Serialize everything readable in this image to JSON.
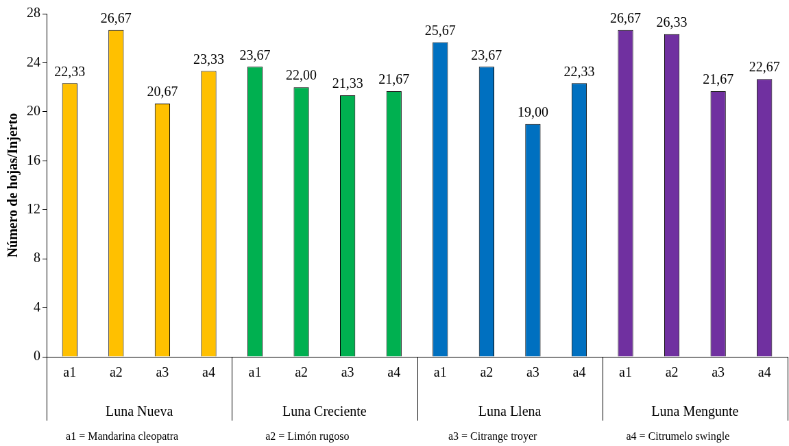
{
  "chart_data": {
    "type": "bar",
    "categories": [
      "a1",
      "a2",
      "a3",
      "a4",
      "a1",
      "a2",
      "a3",
      "a4",
      "a1",
      "a2",
      "a3",
      "a4",
      "a1",
      "a2",
      "a3",
      "a4"
    ],
    "values": [
      22.33,
      26.67,
      20.67,
      23.33,
      23.67,
      22.0,
      21.33,
      21.67,
      25.67,
      23.67,
      19.0,
      22.33,
      26.67,
      26.33,
      21.67,
      22.67
    ],
    "colors": [
      "#ffc000",
      "#ffc000",
      "#ffc000",
      "#ffc000",
      "#00b050",
      "#00b050",
      "#00b050",
      "#00b050",
      "#0070c0",
      "#0070c0",
      "#0070c0",
      "#0070c0",
      "#7030a0",
      "#7030a0",
      "#7030a0",
      "#7030a0"
    ],
    "value_labels": [
      "22,33",
      "26,67",
      "20,67",
      "23,33",
      "23,67",
      "22,00",
      "21,33",
      "21,67",
      "25,67",
      "23,67",
      "19,00",
      "22,33",
      "26,67",
      "26,33",
      "21,67",
      "22,67"
    ],
    "ylabel": "Número de hojas/Injerto",
    "ylim": [
      0,
      28
    ],
    "yticks": [
      0,
      4,
      8,
      12,
      16,
      20,
      24,
      28
    ],
    "grid": false,
    "legend": false,
    "annotations": [
      "Luna Nueva",
      "Luna Creciente",
      "Luna Llena",
      "Luna Mengunte",
      "a1 = Mandarina cleopatra",
      "a2 = Limón rugoso",
      "a3 = Citrange troyer",
      "a4 = Citrumelo swingle"
    ]
  }
}
